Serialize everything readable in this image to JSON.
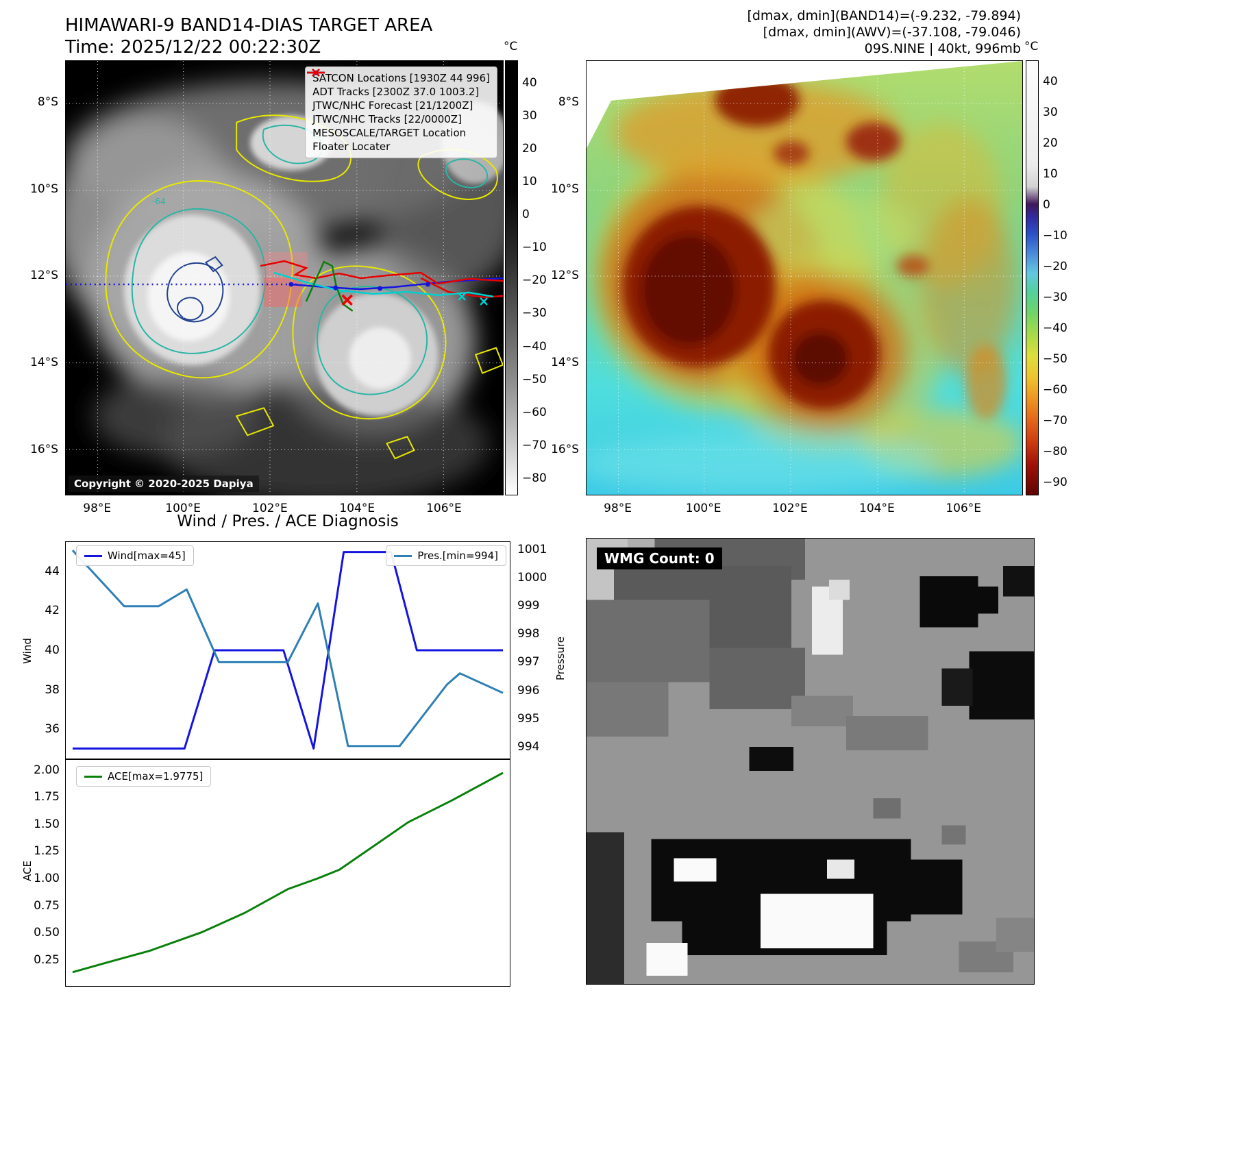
{
  "titles": {
    "left_line1": "HIMAWARI-9 BAND14-DIAS TARGET AREA",
    "left_line2": "Time: 2025/12/22 00:22:30Z",
    "right_annot1": "[dmax, dmin](BAND14)=(-9.232, -79.894)",
    "right_annot2": "[dmax, dmin](AWV)=(-37.108, -79.046)",
    "right_annot3": "09S.NINE | 40kt, 996mb",
    "chart_title": "Wind / Pres. / ACE Diagnosis"
  },
  "left_map": {
    "legend_items": [
      {
        "label": "SATCON Locations [1930Z 44 996]",
        "marker": "x",
        "color": "#00c8c8"
      },
      {
        "label": "ADT Tracks [2300Z 37.0 1003.2]",
        "marker": "line",
        "color": "#0a800a"
      },
      {
        "label": "JTWC/NHC Forecast [21/1200Z]",
        "marker": "dotted",
        "color": "#1414e0"
      },
      {
        "label": "JTWC/NHC Tracks [22/0000Z]",
        "marker": "line-dot",
        "color": "#1414e0"
      },
      {
        "label": "MESOSCALE/TARGET Location",
        "marker": "x",
        "color": "#e60000"
      },
      {
        "label": "Floater Locater",
        "marker": "line",
        "color": "#e60000"
      }
    ],
    "copyright": "Copyright © 2020-2025 Dapiya",
    "contour_label": "-64",
    "lat_ticks": [
      "8°S",
      "10°S",
      "12°S",
      "14°S",
      "16°S"
    ],
    "lon_ticks": [
      "98°E",
      "100°E",
      "102°E",
      "104°E",
      "106°E"
    ],
    "colorbar_unit": "°C",
    "colorbar_ticks": [
      "40",
      "30",
      "20",
      "10",
      "0",
      "−10",
      "−20",
      "−30",
      "−40",
      "−50",
      "−60",
      "−70",
      "−80"
    ]
  },
  "right_map": {
    "lat_ticks": [
      "8°S",
      "10°S",
      "12°S",
      "14°S",
      "16°S"
    ],
    "lon_ticks": [
      "98°E",
      "100°E",
      "102°E",
      "104°E",
      "106°E"
    ],
    "colorbar_unit": "°C",
    "colorbar_ticks": [
      "40",
      "30",
      "20",
      "10",
      "0",
      "−10",
      "−20",
      "−30",
      "−40",
      "−50",
      "−60",
      "−70",
      "−80",
      "−90"
    ]
  },
  "wmg": {
    "label": "WMG Count: 0"
  },
  "chart_data": [
    {
      "type": "line",
      "title": "Wind / Pres. / ACE Diagnosis",
      "subplot": "wind-pressure",
      "x_range": [
        0,
        1
      ],
      "grid": false,
      "series": [
        {
          "name": "Wind[max=45]",
          "color": "#1414e0",
          "axis": "left",
          "x": [
            0,
            0.26,
            0.33,
            0.49,
            0.56,
            0.63,
            0.74,
            0.8,
            1.0
          ],
          "values": [
            35,
            35,
            40,
            40,
            35,
            45,
            45,
            40,
            40
          ]
        },
        {
          "name": "Pres.[min=994]",
          "color": "#2d7fb5",
          "axis": "right",
          "x": [
            0,
            0.12,
            0.2,
            0.265,
            0.34,
            0.5,
            0.57,
            0.64,
            0.76,
            0.87,
            0.9,
            1.0
          ],
          "values": [
            1001,
            999,
            999,
            999.6,
            997,
            997,
            999.1,
            994,
            994,
            996.2,
            996.6,
            995.9
          ]
        }
      ],
      "left_axis": {
        "label": "Wind",
        "ticks": [
          "36",
          "38",
          "40",
          "42",
          "44"
        ],
        "range": [
          34.7,
          45.3
        ]
      },
      "right_axis": {
        "label": "Pressure",
        "ticks": [
          "994",
          "995",
          "996",
          "997",
          "998",
          "999",
          "1000",
          "1001"
        ],
        "range": [
          993.7,
          1001.15
        ]
      }
    },
    {
      "type": "line",
      "subplot": "ace",
      "x_range": [
        0,
        1
      ],
      "grid": false,
      "series": [
        {
          "name": "ACE[max=1.9775]",
          "color": "#0a800a",
          "axis": "left",
          "x": [
            0,
            0.08,
            0.18,
            0.3,
            0.4,
            0.5,
            0.57,
            0.62,
            0.7,
            0.78,
            0.88,
            1.0
          ],
          "values": [
            0.13,
            0.22,
            0.33,
            0.5,
            0.68,
            0.9,
            1.0,
            1.08,
            1.3,
            1.52,
            1.72,
            1.9775
          ]
        }
      ],
      "left_axis": {
        "label": "ACE",
        "ticks": [
          "0.25",
          "0.50",
          "0.75",
          "1.00",
          "1.25",
          "1.50",
          "1.75",
          "2.00"
        ],
        "range": [
          0.04,
          2.06
        ]
      }
    }
  ]
}
